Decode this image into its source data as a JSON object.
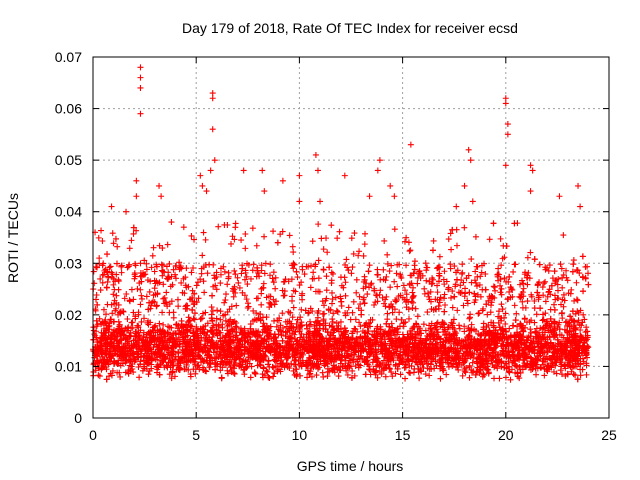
{
  "chart_data": {
    "type": "scatter",
    "title": "Day 179 of 2018, Rate Of TEC Index for receiver ecsd",
    "xlabel": "GPS time / hours",
    "ylabel": "ROTI / TECUs",
    "xlim": [
      0,
      25
    ],
    "ylim": [
      0,
      0.07
    ],
    "xticks": [
      0,
      5,
      10,
      15,
      20,
      25
    ],
    "xtick_labels": [
      "0",
      "5",
      "10",
      "15",
      "20",
      "25"
    ],
    "yticks": [
      0,
      0.01,
      0.02,
      0.03,
      0.04,
      0.05,
      0.06,
      0.07
    ],
    "ytick_labels": [
      "0",
      "0.01",
      "0.02",
      "0.03",
      "0.04",
      "0.05",
      "0.06",
      "0.07"
    ],
    "grid": true,
    "marker": "+",
    "series": [
      {
        "name": "ROTI",
        "color": "#ff0000",
        "x_range": [
          0,
          24
        ],
        "typical_range": [
          0.005,
          0.02
        ],
        "outliers": [
          {
            "x": 0.1,
            "y": 0.036
          },
          {
            "x": 0.3,
            "y": 0.031
          },
          {
            "x": 0.9,
            "y": 0.041
          },
          {
            "x": 1.6,
            "y": 0.04
          },
          {
            "x": 2.1,
            "y": 0.046
          },
          {
            "x": 2.1,
            "y": 0.043
          },
          {
            "x": 2.3,
            "y": 0.068
          },
          {
            "x": 2.3,
            "y": 0.066
          },
          {
            "x": 2.3,
            "y": 0.064
          },
          {
            "x": 2.3,
            "y": 0.059
          },
          {
            "x": 3.2,
            "y": 0.045
          },
          {
            "x": 3.3,
            "y": 0.043
          },
          {
            "x": 3.8,
            "y": 0.038
          },
          {
            "x": 4.4,
            "y": 0.037
          },
          {
            "x": 5.2,
            "y": 0.047
          },
          {
            "x": 5.3,
            "y": 0.045
          },
          {
            "x": 5.5,
            "y": 0.044
          },
          {
            "x": 5.8,
            "y": 0.063
          },
          {
            "x": 5.8,
            "y": 0.062
          },
          {
            "x": 5.8,
            "y": 0.056
          },
          {
            "x": 5.9,
            "y": 0.05
          },
          {
            "x": 5.7,
            "y": 0.048
          },
          {
            "x": 7.3,
            "y": 0.048
          },
          {
            "x": 8.2,
            "y": 0.048
          },
          {
            "x": 8.3,
            "y": 0.044
          },
          {
            "x": 9.2,
            "y": 0.046
          },
          {
            "x": 10.0,
            "y": 0.047
          },
          {
            "x": 10.0,
            "y": 0.042
          },
          {
            "x": 10.8,
            "y": 0.051
          },
          {
            "x": 10.9,
            "y": 0.048
          },
          {
            "x": 11.0,
            "y": 0.042
          },
          {
            "x": 12.2,
            "y": 0.047
          },
          {
            "x": 13.4,
            "y": 0.043
          },
          {
            "x": 13.8,
            "y": 0.048
          },
          {
            "x": 13.9,
            "y": 0.05
          },
          {
            "x": 14.4,
            "y": 0.045
          },
          {
            "x": 14.6,
            "y": 0.043
          },
          {
            "x": 15.4,
            "y": 0.053
          },
          {
            "x": 17.6,
            "y": 0.041
          },
          {
            "x": 18.0,
            "y": 0.045
          },
          {
            "x": 18.2,
            "y": 0.052
          },
          {
            "x": 18.3,
            "y": 0.05
          },
          {
            "x": 18.4,
            "y": 0.042
          },
          {
            "x": 20.0,
            "y": 0.062
          },
          {
            "x": 20.0,
            "y": 0.061
          },
          {
            "x": 20.1,
            "y": 0.057
          },
          {
            "x": 20.1,
            "y": 0.055
          },
          {
            "x": 20.0,
            "y": 0.049
          },
          {
            "x": 21.2,
            "y": 0.049
          },
          {
            "x": 21.3,
            "y": 0.048
          },
          {
            "x": 21.2,
            "y": 0.044
          },
          {
            "x": 22.6,
            "y": 0.043
          },
          {
            "x": 23.5,
            "y": 0.045
          },
          {
            "x": 23.6,
            "y": 0.041
          }
        ]
      }
    ]
  }
}
